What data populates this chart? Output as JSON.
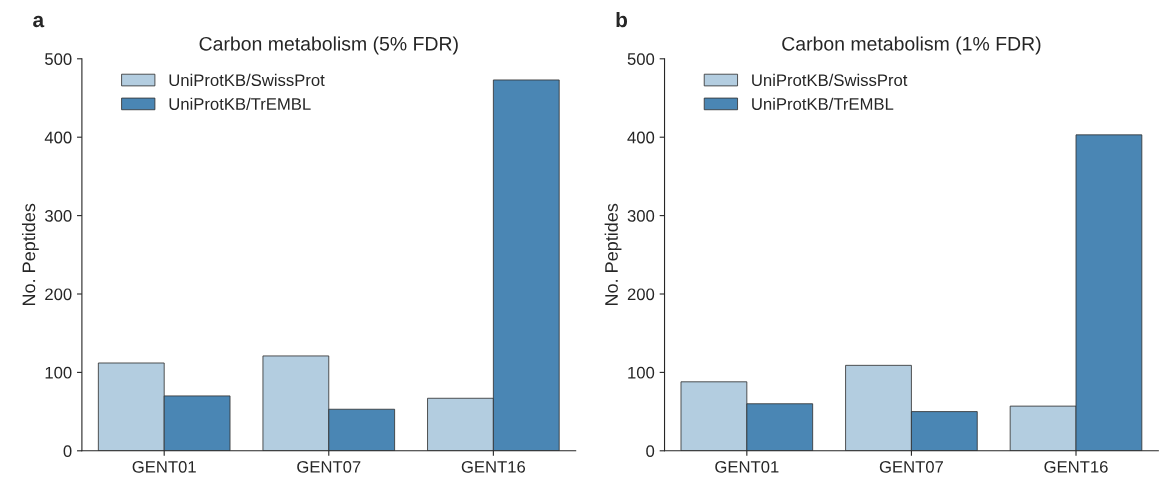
{
  "chart_data": [
    {
      "type": "bar",
      "title": "Carbon metabolism (5% FDR)",
      "ylabel": "No. Peptides",
      "annotations": [
        "a"
      ],
      "categories": [
        "GENT01",
        "GENT07",
        "GENT16"
      ],
      "series": [
        {
          "name": "UniProtKB/SwissProt",
          "color": "#b3cde0",
          "values": [
            112,
            121,
            67
          ]
        },
        {
          "name": "UniProtKB/TrEMBL",
          "color": "#4a86b4",
          "values": [
            70,
            53,
            473
          ]
        }
      ],
      "ylim": [
        0,
        500
      ],
      "yticks": [
        0,
        100,
        200,
        300,
        400,
        500
      ],
      "legend": "top left",
      "grid": false
    },
    {
      "type": "bar",
      "title": "Carbon metabolism (1% FDR)",
      "ylabel": "No. Peptides",
      "annotations": [
        "b"
      ],
      "categories": [
        "GENT01",
        "GENT07",
        "GENT16"
      ],
      "series": [
        {
          "name": "UniProtKB/SwissProt",
          "color": "#b3cde0",
          "values": [
            88,
            109,
            57
          ]
        },
        {
          "name": "UniProtKB/TrEMBL",
          "color": "#4a86b4",
          "values": [
            60,
            50,
            403
          ]
        }
      ],
      "ylim": [
        0,
        500
      ],
      "yticks": [
        0,
        100,
        200,
        300,
        400,
        500
      ],
      "legend": "top left",
      "grid": false
    }
  ]
}
